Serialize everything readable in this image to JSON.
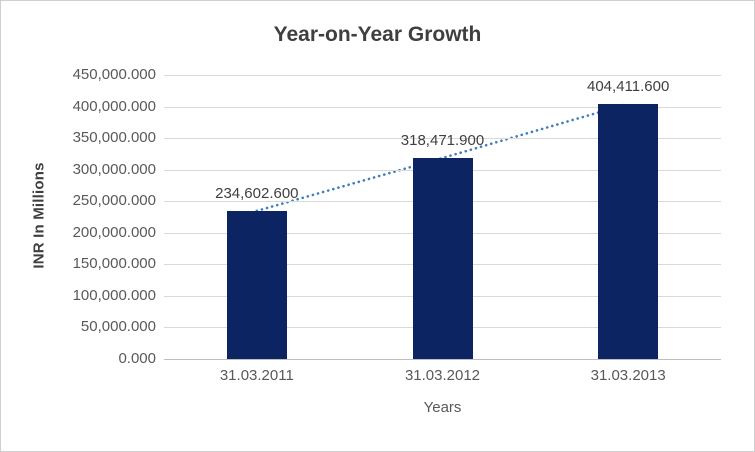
{
  "chart_data": {
    "type": "bar",
    "title": "Year-on-Year Growth",
    "xlabel": "Years",
    "ylabel": "INR In Millions",
    "categories": [
      "31.03.2011",
      "31.03.2012",
      "31.03.2013"
    ],
    "values": [
      234602.6,
      318471.9,
      404411.6
    ],
    "data_labels": [
      "234,602.600",
      "318,471.900",
      "404,411.600"
    ],
    "series": [
      {
        "name": "INR In Millions",
        "values": [
          234602.6,
          318471.9,
          404411.6
        ]
      }
    ],
    "y_tick_values": [
      450000,
      400000,
      350000,
      300000,
      250000,
      200000,
      150000,
      100000,
      50000,
      0
    ],
    "y_tick_labels": [
      "450,000.000",
      "400,000.000",
      "350,000.000",
      "300,000.000",
      "250,000.000",
      "200,000.000",
      "150,000.000",
      "100,000.000",
      "50,000.000",
      "0.000"
    ],
    "ylim": [
      0,
      450000
    ],
    "grid": true,
    "legend": "none",
    "bar_color": "#0c2461",
    "trendline": {
      "type": "linear",
      "style": "dotted",
      "color": "#3f7dbc"
    },
    "gridline_color": "#d9d9d9",
    "axis_line_color": "#bfbfbf",
    "label_color": "#404040",
    "tick_color": "#595959"
  }
}
